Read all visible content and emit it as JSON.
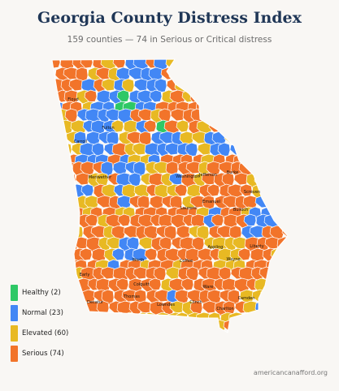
{
  "title": "Georgia County Distress Index",
  "subtitle": "159 counties — 74 in Serious or Critical distress",
  "colors": {
    "healthy": "#2ec866",
    "normal": "#4287f5",
    "elevated": "#e8b923",
    "serious": "#f2742a",
    "border": "#ffffff"
  },
  "legend": [
    {
      "key": "healthy",
      "label": "Healthy (2)",
      "color": "#2ec866"
    },
    {
      "key": "normal",
      "label": "Normal (23)",
      "color": "#4287f5"
    },
    {
      "key": "elevated",
      "label": "Elevated (60)",
      "color": "#e8b923"
    },
    {
      "key": "serious",
      "label": "Serious (74)",
      "color": "#f2742a"
    }
  ],
  "county_labels": [
    "Floyd",
    "Fulton",
    "Carroll",
    "Meriwether",
    "Washington",
    "Jefferson",
    "Burke",
    "Screven",
    "Emanuel",
    "Bulloch",
    "Laurens",
    "Liberty",
    "Appling",
    "Wayne",
    "Worth",
    "Coffee",
    "Early",
    "Colquitt",
    "Ware",
    "Decatur",
    "Thomas",
    "Lowndes",
    "Clinch",
    "Camden",
    "Charlton"
  ],
  "source": "americancanafford.org"
}
